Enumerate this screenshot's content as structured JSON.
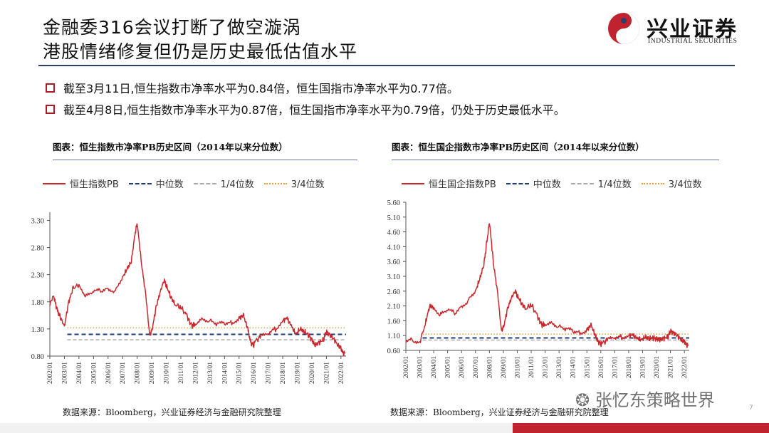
{
  "title": {
    "line1": "金融委316会议打断了做空漩涡",
    "line2": "港股情绪修复但仍是历史最低估值水平"
  },
  "logo": {
    "cn": "兴业证券",
    "en": "INDUSTRIAL SECURITIES"
  },
  "bullets": [
    "截至3月11日,恒生指数市净率水平为0.84倍，恒生国指市净率水平为0.77倍。",
    "截至4月8日,恒生指数市净率水平为0.87倍，恒生国指市净率水平为0.79倍，仍处于历史最低水平。"
  ],
  "watermark": "张忆东策略世界",
  "page_number": "7",
  "colors": {
    "series": "#c9282d",
    "median": "#1f3b73",
    "q1": "#aaaaaa",
    "q3": "#e8a33d"
  },
  "panels": [
    {
      "heading": "图表：恒生指数市净率PB历史区间（2014年以来分位数）",
      "source": "数据来源：Bloomberg，兴业证券经济与金融研究院整理",
      "legend": {
        "series": "恒生指数PB",
        "median": "中位数",
        "q1": "1/4位数",
        "q3": "3/4位数"
      }
    },
    {
      "heading": "图表：恒生国企指数市净率PB历史区间（2014年以来分位数）",
      "source": "数据来源：Bloomberg，兴业证券经济与金融研究院整理",
      "legend": {
        "series": "恒生国企指数PB",
        "median": "中位数",
        "q1": "1/4位数",
        "q3": "3/4位数"
      }
    }
  ],
  "chart_data": [
    {
      "type": "line",
      "x_ticks": [
        "2002/01",
        "2003/01",
        "2004/01",
        "2005/01",
        "2006/01",
        "2007/01",
        "2008/01",
        "2009/01",
        "2010/01",
        "2011/01",
        "2012/01",
        "2013/01",
        "2014/01",
        "2015/01",
        "2016/01",
        "2017/01",
        "2018/01",
        "2019/01",
        "2020/01",
        "2021/01",
        "2022/01"
      ],
      "y_ticks": [
        "0.80",
        "1.30",
        "1.80",
        "2.30",
        "2.80",
        "3.30"
      ],
      "ylim": [
        0.8,
        3.45
      ],
      "xlim": [
        2002.0,
        2022.35
      ],
      "median": 1.2,
      "q1": 1.1,
      "q3": 1.32,
      "series": [
        {
          "name": "恒生指数PB",
          "x": [
            2002.0,
            2002.25,
            2002.5,
            2002.75,
            2003.0,
            2003.3,
            2003.6,
            2004.0,
            2004.5,
            2005.0,
            2005.5,
            2006.0,
            2006.5,
            2007.0,
            2007.3,
            2007.6,
            2007.85,
            2008.0,
            2008.3,
            2008.6,
            2008.85,
            2009.0,
            2009.3,
            2009.6,
            2009.85,
            2010.0,
            2010.3,
            2010.6,
            2011.0,
            2011.4,
            2011.75,
            2012.0,
            2012.5,
            2013.0,
            2013.5,
            2014.0,
            2014.5,
            2015.0,
            2015.3,
            2015.6,
            2015.8,
            2016.0,
            2016.1,
            2016.5,
            2017.0,
            2017.5,
            2018.0,
            2018.3,
            2018.6,
            2018.9,
            2019.2,
            2019.5,
            2019.8,
            2020.0,
            2020.2,
            2020.5,
            2020.8,
            2021.0,
            2021.2,
            2021.5,
            2021.8,
            2022.0,
            2022.15,
            2022.27
          ],
          "y": [
            1.75,
            1.92,
            1.65,
            1.5,
            1.35,
            1.8,
            2.05,
            2.12,
            1.9,
            1.98,
            2.0,
            2.05,
            2.0,
            2.25,
            2.4,
            2.55,
            3.05,
            3.25,
            2.5,
            1.9,
            1.2,
            1.25,
            1.7,
            2.0,
            2.2,
            2.1,
            1.9,
            1.75,
            1.7,
            1.55,
            1.35,
            1.4,
            1.5,
            1.45,
            1.38,
            1.4,
            1.42,
            1.5,
            1.55,
            1.3,
            1.05,
            1.0,
            1.08,
            1.15,
            1.2,
            1.3,
            1.45,
            1.5,
            1.35,
            1.2,
            1.3,
            1.25,
            1.18,
            1.1,
            1.0,
            1.05,
            1.1,
            1.25,
            1.2,
            1.12,
            1.0,
            0.95,
            0.84,
            0.87
          ]
        }
      ]
    },
    {
      "type": "line",
      "x_ticks": [
        "2002/01",
        "2003/01",
        "2004/01",
        "2005/01",
        "2006/01",
        "2007/01",
        "2008/01",
        "2009/01",
        "2010/01",
        "2011/01",
        "2012/01",
        "2013/01",
        "2014/01",
        "2015/01",
        "2016/01",
        "2017/01",
        "2018/01",
        "2019/01",
        "2020/01",
        "2021/01",
        "2022/01"
      ],
      "y_ticks": [
        "0.60",
        "1.10",
        "1.60",
        "2.10",
        "2.60",
        "3.10",
        "3.60",
        "4.10",
        "4.60",
        "5.10",
        "5.60"
      ],
      "ylim": [
        0.6,
        5.6
      ],
      "xlim": [
        2002.0,
        2022.35
      ],
      "median": 1.02,
      "q1": 0.95,
      "q3": 1.15,
      "series": [
        {
          "name": "恒生国企指数PB",
          "x": [
            2002.0,
            2002.5,
            2003.0,
            2003.4,
            2003.7,
            2004.0,
            2004.5,
            2005.0,
            2005.5,
            2006.0,
            2006.5,
            2007.0,
            2007.3,
            2007.6,
            2007.8,
            2008.0,
            2008.3,
            2008.6,
            2008.85,
            2009.0,
            2009.3,
            2009.6,
            2009.85,
            2010.0,
            2010.3,
            2010.6,
            2011.0,
            2011.4,
            2011.75,
            2012.0,
            2012.5,
            2013.0,
            2013.5,
            2014.0,
            2014.5,
            2015.0,
            2015.3,
            2015.6,
            2015.8,
            2016.0,
            2016.1,
            2016.5,
            2017.0,
            2017.5,
            2018.0,
            2018.3,
            2018.6,
            2018.9,
            2019.2,
            2019.5,
            2019.8,
            2020.0,
            2020.2,
            2020.5,
            2020.8,
            2021.0,
            2021.2,
            2021.5,
            2021.8,
            2022.0,
            2022.15,
            2022.27
          ],
          "y": [
            0.9,
            0.95,
            0.88,
            1.5,
            2.1,
            2.05,
            1.8,
            1.95,
            1.85,
            2.1,
            2.3,
            2.6,
            3.0,
            3.5,
            4.2,
            4.95,
            3.5,
            2.5,
            1.3,
            1.35,
            2.0,
            2.4,
            2.6,
            2.45,
            2.2,
            2.0,
            2.15,
            1.8,
            1.45,
            1.5,
            1.55,
            1.4,
            1.3,
            1.25,
            1.2,
            1.3,
            1.45,
            1.1,
            0.9,
            0.82,
            0.85,
            0.95,
            1.0,
            1.05,
            1.1,
            1.12,
            1.0,
            0.95,
            1.05,
            1.0,
            1.02,
            1.0,
            0.95,
            1.0,
            1.05,
            1.25,
            1.2,
            1.1,
            0.95,
            0.9,
            0.77,
            0.79
          ]
        }
      ]
    }
  ]
}
